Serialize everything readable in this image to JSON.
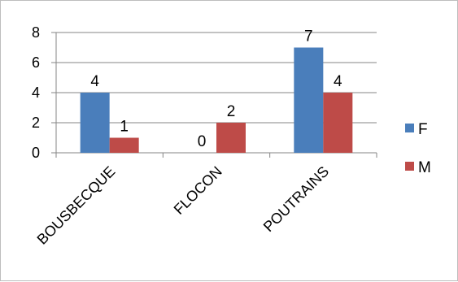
{
  "chart_data": {
    "type": "bar",
    "categories": [
      "BOUSBECQUE",
      "FLOCON",
      "POUTRAINS"
    ],
    "series": [
      {
        "name": "F",
        "values": [
          4,
          0,
          7
        ],
        "color": "#4a7ebb"
      },
      {
        "name": "M",
        "values": [
          1,
          2,
          4
        ],
        "color": "#be4b48"
      }
    ],
    "title": "",
    "xlabel": "",
    "ylabel": "",
    "ylim": [
      0,
      8
    ],
    "yticks": [
      0,
      2,
      4,
      6,
      8
    ],
    "grid": true,
    "legend_position": "right"
  }
}
